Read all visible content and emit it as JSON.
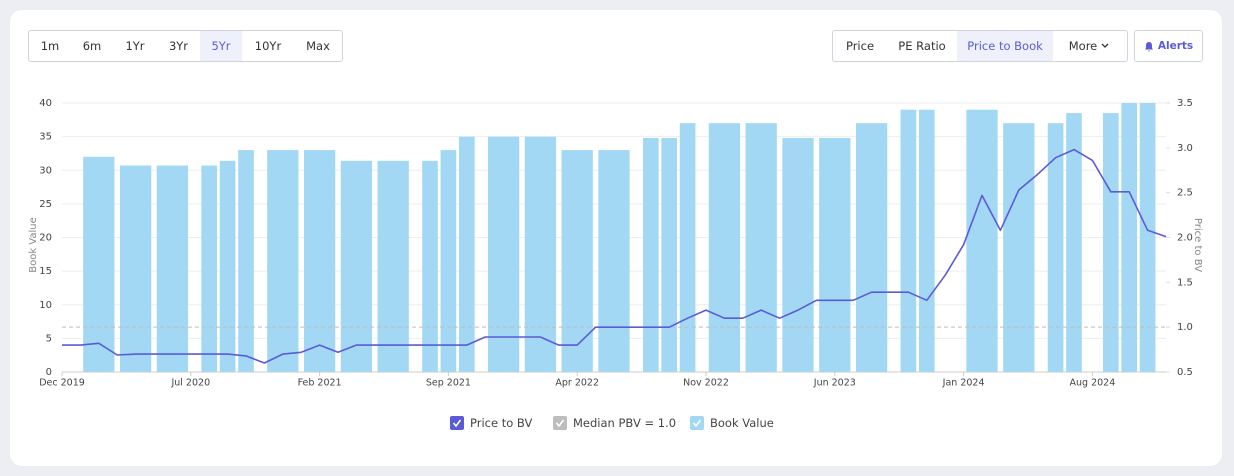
{
  "controls": {
    "periods": [
      "1m",
      "6m",
      "1Yr",
      "3Yr",
      "5Yr",
      "10Yr",
      "Max"
    ],
    "active_period": 4,
    "views": [
      "Price",
      "PE Ratio",
      "Price to Book",
      "More"
    ],
    "active_view": 2,
    "alert": "Alerts"
  },
  "chart_data": {
    "type": "combo",
    "x": [
      "2019-12",
      "2020-01",
      "2020-02",
      "2020-03",
      "2020-04",
      "2020-05",
      "2020-06",
      "2020-07",
      "2020-08",
      "2020-09",
      "2020-10",
      "2020-11",
      "2020-12",
      "2021-01",
      "2021-02",
      "2021-03",
      "2021-04",
      "2021-05",
      "2021-06",
      "2021-07",
      "2021-08",
      "2021-09",
      "2021-10",
      "2021-11",
      "2021-12",
      "2022-01",
      "2022-02",
      "2022-03",
      "2022-04",
      "2022-05",
      "2022-06",
      "2022-07",
      "2022-08",
      "2022-09",
      "2022-10",
      "2022-11",
      "2022-12",
      "2023-01",
      "2023-02",
      "2023-03",
      "2023-04",
      "2023-05",
      "2023-06",
      "2023-07",
      "2023-08",
      "2023-09",
      "2023-10",
      "2023-11",
      "2023-12",
      "2024-01",
      "2024-02",
      "2024-03",
      "2024-04",
      "2024-05",
      "2024-06",
      "2024-07",
      "2024-08",
      "2024-09",
      "2024-10",
      "2024-11",
      "2024-12"
    ],
    "xlim": [
      "2019-12",
      "2024-12"
    ],
    "xticks": [
      {
        "value": "2019-12",
        "label": "Dec 2019"
      },
      {
        "value": "2020-07",
        "label": "Jul 2020"
      },
      {
        "value": "2021-02",
        "label": "Feb 2021"
      },
      {
        "value": "2021-09",
        "label": "Sep 2021"
      },
      {
        "value": "2022-04",
        "label": "Apr 2022"
      },
      {
        "value": "2022-11",
        "label": "Nov 2022"
      },
      {
        "value": "2023-06",
        "label": "Jun 2023"
      },
      {
        "value": "2024-01",
        "label": "Jan 2024"
      },
      {
        "value": "2024-08",
        "label": "Aug 2024"
      }
    ],
    "ylim": [
      0,
      40
    ],
    "yticks": [
      0,
      5,
      10,
      15,
      20,
      25,
      30,
      35,
      40
    ],
    "y2lim": [
      0.5,
      3.5
    ],
    "y2ticks": [
      0.5,
      {
        "value": 1,
        "label": "1.0"
      },
      1.5,
      {
        "value": 2,
        "label": "2.0"
      },
      2.5,
      {
        "value": 3,
        "label": "3.0"
      },
      3.5
    ],
    "ylabel": "Book Value",
    "y2label": "Price to BV",
    "grid": true,
    "series": [
      {
        "name": "Price to BV",
        "type": "line",
        "axis": "y2",
        "color": "#5b5bd6",
        "values": [
          0.8,
          0.8,
          0.82,
          0.69,
          0.7,
          0.7,
          0.7,
          0.7,
          0.7,
          0.7,
          0.68,
          0.6,
          0.7,
          0.72,
          0.8,
          0.72,
          0.8,
          0.8,
          0.8,
          0.8,
          0.8,
          0.8,
          0.8,
          0.89,
          0.89,
          0.89,
          0.89,
          0.8,
          0.8,
          1.0,
          1.0,
          1.0,
          1.0,
          1.0,
          1.1,
          1.19,
          1.1,
          1.1,
          1.19,
          1.1,
          1.19,
          1.3,
          1.3,
          1.3,
          1.39,
          1.39,
          1.39,
          1.3,
          1.58,
          1.92,
          2.47,
          2.08,
          2.53,
          2.7,
          2.89,
          2.98,
          2.86,
          2.51,
          2.51,
          2.08,
          2.01
        ]
      },
      {
        "name": "Book Value",
        "type": "bar",
        "color": "#a3d8f4",
        "x": [
          "2020-02",
          "2020-04",
          "2020-06",
          "2020-08",
          "2020-09",
          "2020-10",
          "2020-12",
          "2021-02",
          "2021-04",
          "2021-06",
          "2021-08",
          "2021-09",
          "2021-10",
          "2021-12",
          "2022-02",
          "2022-04",
          "2022-06",
          "2022-08",
          "2022-09",
          "2022-10",
          "2022-12",
          "2023-02",
          "2023-04",
          "2023-06",
          "2023-08",
          "2023-10",
          "2023-11",
          "2024-02",
          "2024-04",
          "2024-06",
          "2024-07",
          "2024-09",
          "2024-10",
          "2024-11"
        ],
        "values": [
          32,
          30.7,
          30.7,
          30.7,
          31.4,
          33,
          33,
          33,
          31.4,
          31.4,
          31.4,
          33,
          35,
          35,
          35,
          33,
          33,
          34.8,
          34.8,
          37,
          37,
          37,
          34.8,
          34.8,
          37,
          39,
          39,
          39,
          37,
          37,
          38.5,
          38.5,
          40,
          40
        ]
      }
    ],
    "reference_lines": [
      {
        "name": "Median PBV = 1.0",
        "value": 1,
        "axis": "y2",
        "color": "#bdbdbd"
      }
    ]
  }
}
